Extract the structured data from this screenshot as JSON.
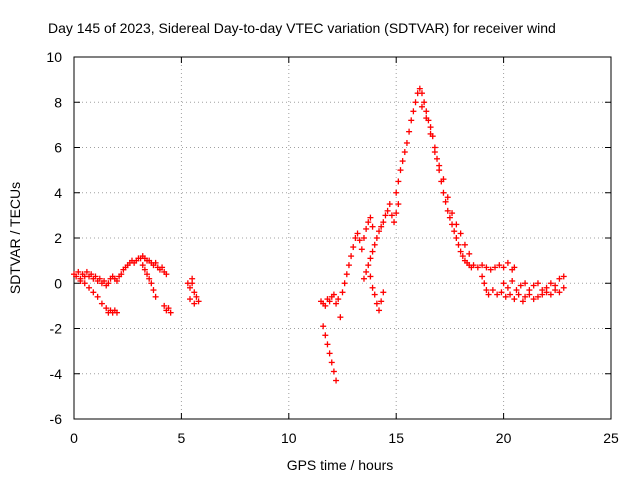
{
  "chart_data": {
    "type": "scatter",
    "title": "Day 145 of 2023, Sidereal Day-to-day VTEC variation (SDTVAR) for receiver wind",
    "xlabel": "GPS time / hours",
    "ylabel": "SDTVAR / TECUs",
    "xlim": [
      0,
      25
    ],
    "ylim": [
      -6,
      10
    ],
    "xticks": [
      "0",
      "5",
      "10",
      "15",
      "20",
      "25"
    ],
    "yticks": [
      "-6",
      "-4",
      "-2",
      "0",
      "2",
      "4",
      "6",
      "8",
      "10"
    ],
    "grid": true,
    "marker": "+",
    "color": "#ff0000",
    "series": [
      {
        "name": "SDTVAR",
        "points": [
          [
            0.0,
            0.4
          ],
          [
            0.1,
            0.3
          ],
          [
            0.2,
            0.5
          ],
          [
            0.3,
            0.2
          ],
          [
            0.4,
            0.4
          ],
          [
            0.5,
            0.3
          ],
          [
            0.6,
            0.5
          ],
          [
            0.7,
            0.3
          ],
          [
            0.8,
            0.4
          ],
          [
            0.9,
            0.2
          ],
          [
            1.0,
            0.3
          ],
          [
            1.1,
            0.1
          ],
          [
            1.2,
            0.2
          ],
          [
            1.3,
            0.0
          ],
          [
            1.4,
            0.1
          ],
          [
            1.5,
            -0.1
          ],
          [
            1.6,
            0.0
          ],
          [
            1.7,
            0.2
          ],
          [
            1.8,
            0.3
          ],
          [
            1.9,
            0.2
          ],
          [
            2.0,
            0.1
          ],
          [
            2.1,
            0.3
          ],
          [
            2.2,
            0.4
          ],
          [
            2.3,
            0.6
          ],
          [
            2.4,
            0.7
          ],
          [
            2.5,
            0.8
          ],
          [
            2.6,
            0.9
          ],
          [
            2.7,
            1.0
          ],
          [
            2.8,
            0.9
          ],
          [
            2.9,
            1.0
          ],
          [
            3.0,
            1.1
          ],
          [
            3.1,
            1.1
          ],
          [
            3.2,
            1.2
          ],
          [
            3.3,
            1.1
          ],
          [
            3.4,
            1.0
          ],
          [
            3.5,
            1.0
          ],
          [
            3.6,
            0.9
          ],
          [
            3.7,
            0.8
          ],
          [
            3.8,
            0.9
          ],
          [
            3.9,
            0.7
          ],
          [
            4.0,
            0.6
          ],
          [
            4.1,
            0.7
          ],
          [
            4.2,
            0.5
          ],
          [
            4.3,
            0.4
          ],
          [
            0.3,
            0.1
          ],
          [
            0.5,
            0.0
          ],
          [
            0.7,
            -0.2
          ],
          [
            0.9,
            -0.4
          ],
          [
            1.1,
            -0.6
          ],
          [
            1.3,
            -0.9
          ],
          [
            1.5,
            -1.1
          ],
          [
            1.6,
            -1.3
          ],
          [
            1.7,
            -1.2
          ],
          [
            1.8,
            -1.3
          ],
          [
            1.9,
            -1.2
          ],
          [
            2.0,
            -1.3
          ],
          [
            3.2,
            0.8
          ],
          [
            3.3,
            0.6
          ],
          [
            3.4,
            0.4
          ],
          [
            3.5,
            0.2
          ],
          [
            3.6,
            0.0
          ],
          [
            3.7,
            -0.3
          ],
          [
            3.8,
            -0.6
          ],
          [
            4.2,
            -1.0
          ],
          [
            4.3,
            -1.2
          ],
          [
            4.4,
            -1.1
          ],
          [
            4.5,
            -1.3
          ],
          [
            5.3,
            0.0
          ],
          [
            5.4,
            -0.2
          ],
          [
            5.5,
            0.2
          ],
          [
            5.6,
            -0.4
          ],
          [
            5.7,
            -0.6
          ],
          [
            5.8,
            -0.8
          ],
          [
            5.4,
            -0.7
          ],
          [
            5.5,
            0.0
          ],
          [
            5.6,
            -0.9
          ],
          [
            11.5,
            -0.8
          ],
          [
            11.6,
            -0.9
          ],
          [
            11.7,
            -1.0
          ],
          [
            11.8,
            -0.7
          ],
          [
            11.9,
            -0.8
          ],
          [
            12.0,
            -0.6
          ],
          [
            12.1,
            -0.5
          ],
          [
            12.2,
            -0.9
          ],
          [
            12.3,
            -0.7
          ],
          [
            12.4,
            -1.5
          ],
          [
            11.6,
            -1.9
          ],
          [
            11.7,
            -2.3
          ],
          [
            11.8,
            -2.7
          ],
          [
            11.9,
            -3.1
          ],
          [
            12.0,
            -3.5
          ],
          [
            12.1,
            -3.9
          ],
          [
            12.2,
            -4.3
          ],
          [
            12.5,
            -0.4
          ],
          [
            12.6,
            0.0
          ],
          [
            12.7,
            0.4
          ],
          [
            12.8,
            0.8
          ],
          [
            12.9,
            1.2
          ],
          [
            13.0,
            1.6
          ],
          [
            13.1,
            2.0
          ],
          [
            13.2,
            2.2
          ],
          [
            13.3,
            1.9
          ],
          [
            13.4,
            1.5
          ],
          [
            13.5,
            2.0
          ],
          [
            13.6,
            2.4
          ],
          [
            13.7,
            2.7
          ],
          [
            13.8,
            2.9
          ],
          [
            13.9,
            2.5
          ],
          [
            13.5,
            0.2
          ],
          [
            13.6,
            0.5
          ],
          [
            13.7,
            0.8
          ],
          [
            13.8,
            1.1
          ],
          [
            13.9,
            1.4
          ],
          [
            14.0,
            1.7
          ],
          [
            14.1,
            2.0
          ],
          [
            14.2,
            2.3
          ],
          [
            14.3,
            2.5
          ],
          [
            14.4,
            2.7
          ],
          [
            14.5,
            3.0
          ],
          [
            14.6,
            3.2
          ],
          [
            14.7,
            3.5
          ],
          [
            14.8,
            3.0
          ],
          [
            14.9,
            2.7
          ],
          [
            15.0,
            3.1
          ],
          [
            15.1,
            3.5
          ],
          [
            13.8,
            0.3
          ],
          [
            13.9,
            -0.2
          ],
          [
            14.0,
            -0.5
          ],
          [
            14.1,
            -0.9
          ],
          [
            14.2,
            -1.2
          ],
          [
            14.3,
            -0.8
          ],
          [
            14.4,
            -0.4
          ],
          [
            15.0,
            4.0
          ],
          [
            15.1,
            4.5
          ],
          [
            15.2,
            5.0
          ],
          [
            15.3,
            5.4
          ],
          [
            15.4,
            5.8
          ],
          [
            15.5,
            6.2
          ],
          [
            15.6,
            6.7
          ],
          [
            15.7,
            7.2
          ],
          [
            15.8,
            7.6
          ],
          [
            15.9,
            8.0
          ],
          [
            16.0,
            8.4
          ],
          [
            16.1,
            8.6
          ],
          [
            16.2,
            8.4
          ],
          [
            16.3,
            8.0
          ],
          [
            16.4,
            7.6
          ],
          [
            16.5,
            7.2
          ],
          [
            16.6,
            6.9
          ],
          [
            16.7,
            6.5
          ],
          [
            16.8,
            6.0
          ],
          [
            16.9,
            5.5
          ],
          [
            17.0,
            5.0
          ],
          [
            17.1,
            4.5
          ],
          [
            17.2,
            4.0
          ],
          [
            17.3,
            3.6
          ],
          [
            17.4,
            3.2
          ],
          [
            17.5,
            2.9
          ],
          [
            17.6,
            2.6
          ],
          [
            17.7,
            2.3
          ],
          [
            17.8,
            2.0
          ],
          [
            17.9,
            1.7
          ],
          [
            18.0,
            1.4
          ],
          [
            18.1,
            1.2
          ],
          [
            18.2,
            1.0
          ],
          [
            18.3,
            0.9
          ],
          [
            18.4,
            0.8
          ],
          [
            18.5,
            0.7
          ],
          [
            16.2,
            7.8
          ],
          [
            16.4,
            7.3
          ],
          [
            16.6,
            6.6
          ],
          [
            16.8,
            5.8
          ],
          [
            17.0,
            5.2
          ],
          [
            17.2,
            4.6
          ],
          [
            17.4,
            3.8
          ],
          [
            17.6,
            3.1
          ],
          [
            17.8,
            2.6
          ],
          [
            18.0,
            2.2
          ],
          [
            18.2,
            1.7
          ],
          [
            18.4,
            1.3
          ],
          [
            18.6,
            0.8
          ],
          [
            18.8,
            0.7
          ],
          [
            19.0,
            0.8
          ],
          [
            19.2,
            0.7
          ],
          [
            19.4,
            0.6
          ],
          [
            19.6,
            0.7
          ],
          [
            19.8,
            0.8
          ],
          [
            20.0,
            0.7
          ],
          [
            20.2,
            0.9
          ],
          [
            20.4,
            0.6
          ],
          [
            20.5,
            0.7
          ],
          [
            19.0,
            0.3
          ],
          [
            19.1,
            0.0
          ],
          [
            19.2,
            -0.3
          ],
          [
            19.3,
            -0.5
          ],
          [
            19.5,
            -0.3
          ],
          [
            19.7,
            -0.5
          ],
          [
            19.9,
            -0.4
          ],
          [
            20.1,
            -0.6
          ],
          [
            20.3,
            -0.5
          ],
          [
            20.5,
            -0.7
          ],
          [
            20.7,
            -0.5
          ],
          [
            20.9,
            -0.8
          ],
          [
            21.0,
            -0.6
          ],
          [
            21.2,
            -0.5
          ],
          [
            21.4,
            -0.7
          ],
          [
            21.6,
            -0.6
          ],
          [
            21.8,
            -0.5
          ],
          [
            22.0,
            -0.4
          ],
          [
            22.2,
            -0.5
          ],
          [
            22.4,
            -0.3
          ],
          [
            22.6,
            -0.4
          ],
          [
            22.8,
            -0.2
          ],
          [
            20.0,
            0.0
          ],
          [
            20.2,
            -0.2
          ],
          [
            20.4,
            0.1
          ],
          [
            20.6,
            -0.3
          ],
          [
            20.8,
            -0.1
          ],
          [
            21.0,
            0.0
          ],
          [
            21.2,
            -0.3
          ],
          [
            21.4,
            -0.1
          ],
          [
            21.6,
            0.0
          ],
          [
            21.8,
            -0.3
          ],
          [
            22.0,
            -0.2
          ],
          [
            22.2,
            0.0
          ],
          [
            22.4,
            -0.1
          ],
          [
            22.6,
            0.2
          ],
          [
            22.8,
            0.3
          ]
        ]
      }
    ]
  }
}
